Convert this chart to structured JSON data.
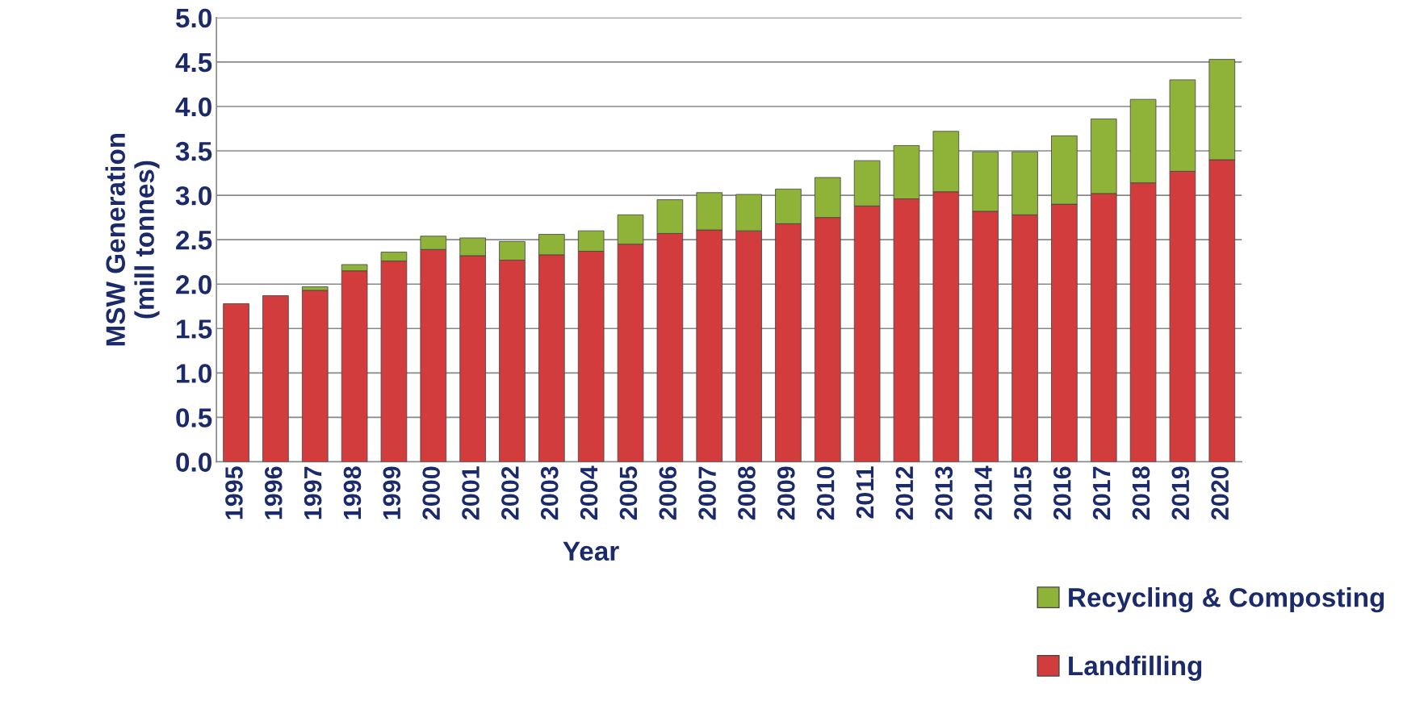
{
  "chart_data": {
    "type": "bar",
    "stacked": true,
    "xlabel": "Year",
    "ylabel": "MSW Generation\n(mill tonnes)",
    "categories": [
      "1995",
      "1996",
      "1997",
      "1998",
      "1999",
      "2000",
      "2001",
      "2002",
      "2003",
      "2004",
      "2005",
      "2006",
      "2007",
      "2008",
      "2009",
      "2010",
      "2011",
      "2012",
      "2013",
      "2014",
      "2015",
      "2016",
      "2017",
      "2018",
      "2019",
      "2020"
    ],
    "series": [
      {
        "name": "Landfilling",
        "color": "#d23c3c",
        "values": [
          1.78,
          1.87,
          1.93,
          2.15,
          2.26,
          2.39,
          2.32,
          2.27,
          2.33,
          2.37,
          2.45,
          2.57,
          2.61,
          2.6,
          2.68,
          2.75,
          2.88,
          2.96,
          3.04,
          2.82,
          2.78,
          2.9,
          3.02,
          3.14,
          3.27,
          3.4
        ]
      },
      {
        "name": "Recycling & Composting",
        "color": "#8fb339",
        "values": [
          null,
          null,
          0.04,
          0.07,
          0.1,
          0.15,
          0.2,
          0.21,
          0.23,
          0.23,
          0.33,
          0.38,
          0.42,
          0.41,
          0.39,
          0.45,
          0.51,
          0.6,
          0.68,
          0.67,
          0.71,
          0.77,
          0.84,
          0.94,
          1.03,
          1.13
        ]
      }
    ],
    "ylim": [
      0,
      5
    ],
    "yticks": [
      {
        "value": 0,
        "label": "0.0"
      },
      {
        "value": 0.5,
        "label": "0.5"
      },
      {
        "value": 1,
        "label": "1.0"
      },
      {
        "value": 1.5,
        "label": "1.5"
      },
      {
        "value": 2,
        "label": "2.0"
      },
      {
        "value": 2.5,
        "label": "2.5"
      },
      {
        "value": 3,
        "label": "3.0"
      },
      {
        "value": 3.5,
        "label": "3.5"
      },
      {
        "value": 4,
        "label": "4.0"
      },
      {
        "value": 4.5,
        "label": "4.5"
      },
      {
        "value": 5,
        "label": "5.0"
      }
    ],
    "grid": "y",
    "legend": "bottom right"
  }
}
